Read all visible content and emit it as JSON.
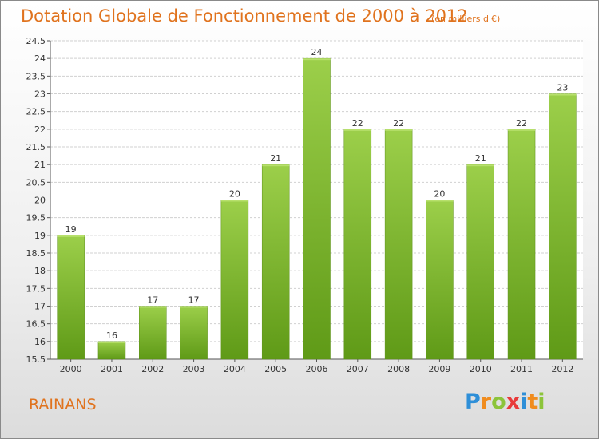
{
  "title": "Dotation Globale de Fonctionnement de 2000 à 2012",
  "unit_note": "(en milliers d'€)",
  "commune": "RAINANS",
  "logo": {
    "letters": [
      "P",
      "r",
      "o",
      "x",
      "i",
      "t",
      "i"
    ],
    "colors": [
      "#2e8fd8",
      "#f08c1e",
      "#8cc43a",
      "#e83a3a",
      "#2e8fd8",
      "#f08c1e",
      "#8cc43a"
    ]
  },
  "chart_data": {
    "type": "bar",
    "title": "Dotation Globale de Fonctionnement de 2000 à 2012",
    "xlabel": "",
    "ylabel": "",
    "categories": [
      "2000",
      "2001",
      "2002",
      "2003",
      "2004",
      "2005",
      "2006",
      "2007",
      "2008",
      "2009",
      "2010",
      "2011",
      "2012"
    ],
    "values": [
      19,
      16,
      17,
      17,
      20,
      21,
      24,
      22,
      22,
      20,
      21,
      22,
      23
    ],
    "data_labels": [
      "19",
      "16",
      "17",
      "17",
      "20",
      "21",
      "24",
      "22",
      "22",
      "20",
      "21",
      "22",
      "23"
    ],
    "ylim": [
      15.5,
      24.5
    ],
    "yticks": [
      "15.5",
      "16",
      "16.5",
      "17",
      "17.5",
      "18",
      "18.5",
      "19",
      "19.5",
      "20",
      "20.5",
      "21",
      "21.5",
      "22",
      "22.5",
      "23",
      "23.5",
      "24",
      "24.5"
    ],
    "grid": true,
    "bar_color": "#7cb82f",
    "legend": "none"
  }
}
